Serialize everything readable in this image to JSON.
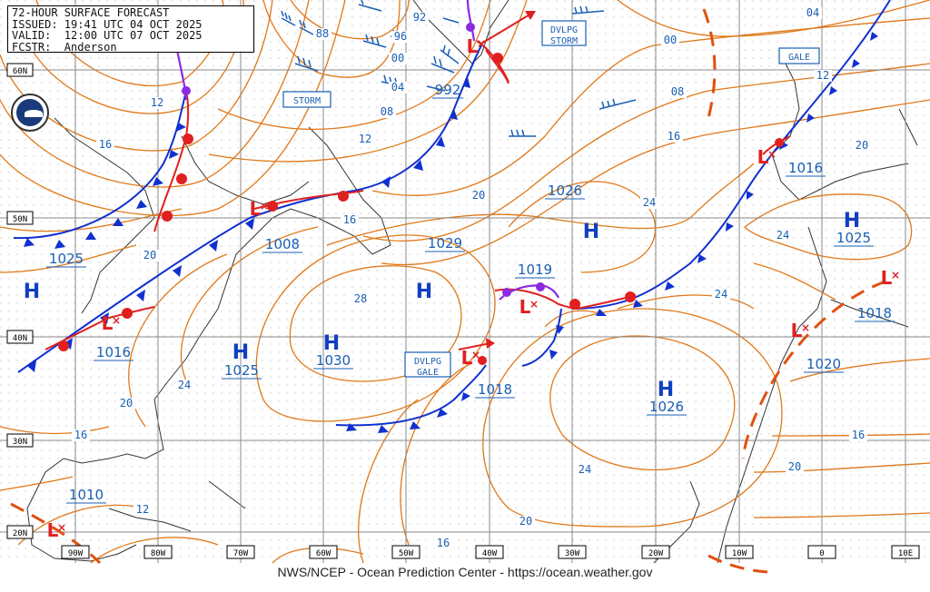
{
  "header": {
    "line1": "72-HOUR SURFACE FORECAST",
    "line2": "ISSUED: 19:41 UTC 04 OCT 2025",
    "line3": "VALID:  12:00 UTC 07 OCT 2025",
    "line4": "FCSTR:  Anderson"
  },
  "logo": {
    "text": "NOAA",
    "icon": "noaa-logo-icon"
  },
  "credit": "NWS/NCEP - Ocean Prediction Center - https://ocean.weather.gov",
  "lat_labels": [
    "60N",
    "50N",
    "40N",
    "30N",
    "20N"
  ],
  "lon_labels": [
    "90W",
    "80W",
    "70W",
    "60W",
    "50W",
    "40W",
    "30W",
    "20W",
    "10W",
    "0",
    "10E"
  ],
  "pressure_centers": [
    {
      "type": "H",
      "value": "1025",
      "color": "#1040c0"
    },
    {
      "type": "H",
      "value": "1025",
      "color": "#1040c0"
    },
    {
      "type": "H",
      "value": "1030",
      "color": "#1040c0"
    },
    {
      "type": "H",
      "value": "1029",
      "color": "#1040c0"
    },
    {
      "type": "H",
      "value": "1026",
      "color": "#1040c0"
    },
    {
      "type": "H",
      "value": "1026",
      "color": "#1040c0"
    },
    {
      "type": "H",
      "value": "1025",
      "color": "#1040c0"
    },
    {
      "type": "L",
      "value": "992",
      "color": "#e02020"
    },
    {
      "type": "L",
      "value": "1008",
      "color": "#e02020"
    },
    {
      "type": "L",
      "value": "1016",
      "color": "#e02020"
    },
    {
      "type": "L",
      "value": "1019",
      "color": "#e02020"
    },
    {
      "type": "L",
      "value": "1018",
      "color": "#e02020"
    },
    {
      "type": "L",
      "value": "1016",
      "color": "#e02020"
    },
    {
      "type": "L",
      "value": "1020",
      "color": "#e02020"
    },
    {
      "type": "L",
      "value": "1018",
      "color": "#e02020"
    },
    {
      "type": "L",
      "value": "1010",
      "color": "#e02020"
    }
  ],
  "isobar_labels": [
    "88",
    "92",
    "96",
    "00",
    "04",
    "08",
    "12",
    "16",
    "20",
    "24",
    "28",
    "00",
    "08",
    "16",
    "04",
    "12",
    "20",
    "24",
    "24",
    "20",
    "16",
    "12",
    "16",
    "20",
    "24",
    "20",
    "16",
    "12",
    "16",
    "20",
    "24"
  ],
  "warnings": {
    "storm": "STORM",
    "dvlpg_storm_1": "DVLPG",
    "dvlpg_storm_2": "STORM",
    "gale": "GALE",
    "dvlpg_gale_1": "DVLPG",
    "dvlpg_gale_2": "GALE"
  },
  "colors": {
    "isobar": "#e07818",
    "cold_front": "#1030d0",
    "warm_front": "#e02020",
    "occluded": "#8a2be2",
    "grid": "#8a8a8a",
    "label": "#1a5fb4",
    "trough": "#e05010"
  }
}
